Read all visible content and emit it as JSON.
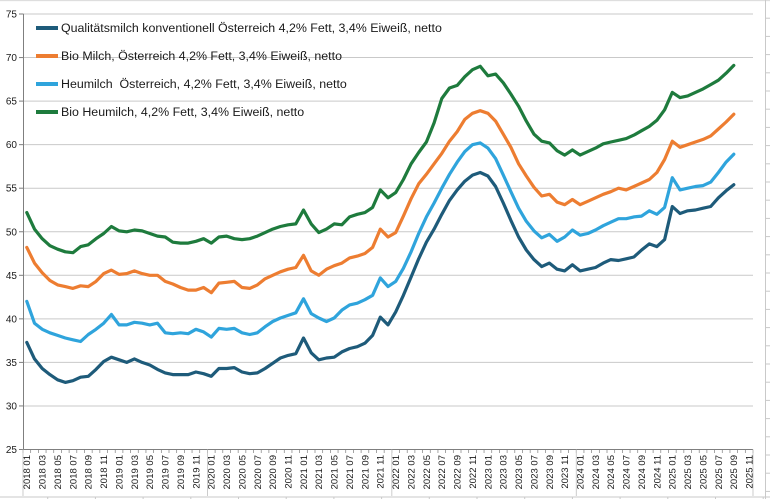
{
  "colors": {
    "background": "#FFFFFF",
    "gridline": "#C9C9C9",
    "axis": "#7F7F7F",
    "tick": "#7F7F7F",
    "axis_label": "#1A1A1A",
    "separator": "#BFBFBF",
    "worksheet_line": "#C9C9C9",
    "frame_border": "#D9D9D9"
  },
  "chart_data": {
    "type": "line",
    "title": "",
    "grid": "horizontal",
    "legend_position": "top-left-inside",
    "y_axis": {
      "min": 25,
      "max": 75,
      "ticks": [
        25,
        30,
        35,
        40,
        45,
        50,
        55,
        60,
        65,
        70,
        75
      ]
    },
    "x_axis": {
      "months_total": 93,
      "categories_total": 95,
      "first_month": "2018 01",
      "last_data_month": "2025 09",
      "tick_labels": [
        "2018 01",
        "2018 03",
        "2018 05",
        "2018 07",
        "2018 09",
        "2018 11",
        "2019 01",
        "2019 03",
        "2019 05",
        "2019 07",
        "2019 09",
        "2019 11",
        "2020 01",
        "2020 03",
        "2020 05",
        "2020 07",
        "2020 09",
        "2020 11",
        "2021 01",
        "2021 03",
        "2021 05",
        "2021 07",
        "2021 09",
        "2021 11",
        "2022 01",
        "2022 03",
        "2022 05",
        "2022 07",
        "2022 09",
        "2022 11",
        "2023 01",
        "2023 03",
        "2023 05",
        "2023 07",
        "2023 09",
        "2023 11",
        "2024 01",
        "2024 03",
        "2024 05",
        "2024 07",
        "2024 09",
        "2024 11",
        "2025 01",
        "2025 03",
        "2025 05",
        "2025 07",
        "2025 09",
        "2025 11"
      ]
    },
    "series": [
      {
        "name": "Qualitätsmilch konventionell Österreich 4,2% Fett, 3,4% Eiweiß, netto",
        "color": "#1E5B7A",
        "values": [
          37.3,
          35.4,
          34.3,
          33.6,
          33.0,
          32.7,
          32.9,
          33.3,
          33.4,
          34.2,
          35.1,
          35.6,
          35.3,
          35.0,
          35.4,
          35.0,
          34.7,
          34.2,
          33.8,
          33.6,
          33.6,
          33.6,
          33.9,
          33.7,
          33.4,
          34.3,
          34.3,
          34.4,
          33.9,
          33.7,
          33.8,
          34.3,
          34.9,
          35.5,
          35.8,
          36.0,
          37.8,
          36.1,
          35.3,
          35.5,
          35.6,
          36.2,
          36.6,
          36.8,
          37.2,
          38.1,
          40.2,
          39.3,
          40.8,
          42.7,
          44.8,
          46.9,
          48.8,
          50.3,
          52.0,
          53.6,
          54.8,
          55.8,
          56.5,
          56.8,
          56.4,
          55.2,
          53.3,
          51.3,
          49.4,
          47.9,
          46.8,
          46.0,
          46.4,
          45.7,
          45.5,
          46.2,
          45.5,
          45.7,
          45.9,
          46.4,
          46.8,
          46.7,
          46.9,
          47.1,
          47.9,
          48.6,
          48.3,
          49.1,
          52.9,
          52.1,
          52.4,
          52.5,
          52.7,
          52.9,
          53.9,
          54.7,
          55.4
        ]
      },
      {
        "name": "Bio Milch, Österreich 4,2% Fett, 3,4% Eiweiß, netto",
        "color": "#ED7D31",
        "values": [
          48.2,
          46.4,
          45.3,
          44.4,
          43.9,
          43.7,
          43.5,
          43.8,
          43.7,
          44.3,
          45.2,
          45.6,
          45.1,
          45.2,
          45.5,
          45.2,
          45.0,
          45.0,
          44.3,
          44.0,
          43.6,
          43.3,
          43.3,
          43.6,
          43.0,
          44.1,
          44.2,
          44.3,
          43.6,
          43.5,
          43.9,
          44.6,
          45.0,
          45.4,
          45.7,
          45.9,
          47.3,
          45.5,
          45.0,
          45.7,
          46.1,
          46.4,
          47.0,
          47.2,
          47.5,
          48.2,
          50.3,
          49.4,
          49.9,
          51.8,
          53.8,
          55.5,
          56.6,
          57.8,
          59.0,
          60.4,
          61.5,
          62.9,
          63.6,
          63.9,
          63.6,
          62.7,
          61.2,
          59.7,
          57.8,
          56.4,
          55.1,
          54.1,
          54.3,
          53.4,
          53.1,
          53.7,
          53.1,
          53.5,
          53.9,
          54.3,
          54.6,
          55.0,
          54.8,
          55.2,
          55.6,
          56.0,
          56.8,
          58.3,
          60.4,
          59.7,
          60.0,
          60.3,
          60.6,
          61.0,
          61.8,
          62.6,
          63.5
        ]
      },
      {
        "name": "Heumilch  Österreich, 4,2% Fett, 3,4% Eiweiß, netto",
        "color": "#2FA4DC",
        "values": [
          42.0,
          39.5,
          38.8,
          38.4,
          38.1,
          37.8,
          37.6,
          37.4,
          38.2,
          38.8,
          39.5,
          40.5,
          39.3,
          39.3,
          39.6,
          39.5,
          39.3,
          39.5,
          38.4,
          38.3,
          38.4,
          38.3,
          38.8,
          38.5,
          37.9,
          38.9,
          38.8,
          38.9,
          38.4,
          38.2,
          38.4,
          39.1,
          39.7,
          40.1,
          40.4,
          40.7,
          42.3,
          40.6,
          40.1,
          39.7,
          40.1,
          41.0,
          41.6,
          41.8,
          42.2,
          42.7,
          44.7,
          43.7,
          44.3,
          45.8,
          47.7,
          49.8,
          51.7,
          53.3,
          55.0,
          56.6,
          58.0,
          59.2,
          60.0,
          60.2,
          59.6,
          58.4,
          56.5,
          54.6,
          52.7,
          51.2,
          50.1,
          49.3,
          49.7,
          48.9,
          49.4,
          50.2,
          49.6,
          49.8,
          50.2,
          50.7,
          51.1,
          51.5,
          51.5,
          51.7,
          51.8,
          52.4,
          52.0,
          52.8,
          56.2,
          54.8,
          55.0,
          55.2,
          55.3,
          55.7,
          56.8,
          58.0,
          58.9
        ]
      },
      {
        "name": "Bio Heumilch, 4,2% Fett, 3,4% Eiweiß, netto",
        "color": "#1E7B3D",
        "values": [
          52.2,
          50.3,
          49.2,
          48.4,
          48.0,
          47.7,
          47.6,
          48.3,
          48.5,
          49.2,
          49.8,
          50.6,
          50.1,
          50.0,
          50.2,
          50.1,
          49.8,
          49.5,
          49.4,
          48.8,
          48.7,
          48.7,
          48.9,
          49.2,
          48.7,
          49.4,
          49.5,
          49.2,
          49.1,
          49.2,
          49.5,
          49.9,
          50.3,
          50.6,
          50.8,
          50.9,
          52.5,
          50.9,
          49.9,
          50.3,
          50.9,
          50.8,
          51.7,
          52.0,
          52.2,
          52.8,
          54.8,
          53.9,
          54.5,
          56.0,
          57.8,
          59.1,
          60.3,
          62.5,
          65.3,
          66.5,
          66.8,
          67.8,
          68.6,
          69.0,
          67.9,
          68.1,
          67.1,
          65.8,
          64.4,
          62.7,
          61.2,
          60.4,
          60.2,
          59.3,
          58.8,
          59.4,
          58.8,
          59.2,
          59.6,
          60.1,
          60.3,
          60.5,
          60.7,
          61.1,
          61.6,
          62.1,
          62.8,
          64.0,
          66.0,
          65.4,
          65.6,
          66.0,
          66.4,
          66.9,
          67.4,
          68.2,
          69.1
        ]
      }
    ]
  }
}
